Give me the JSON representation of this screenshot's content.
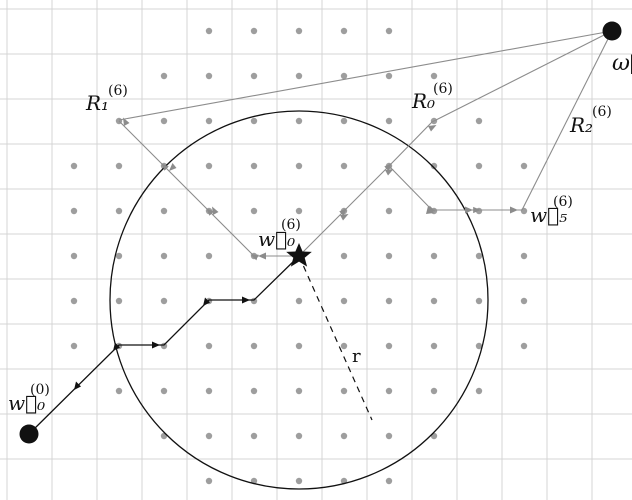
{
  "labels": {
    "w0_initial": "w⃗₀",
    "w0_initial_sup": "(0)",
    "w0_current": "w⃗₀",
    "w0_current_sup": "(6)",
    "w5": "w⃗₅",
    "w5_sup": "(6)",
    "R0": "R₀",
    "R0_sup": "(6)",
    "R1": "R₁",
    "R1_sup": "(6)",
    "R2": "R₂",
    "R2_sup": "(6)",
    "omega": "ω⃗",
    "radius": "r"
  },
  "colors": {
    "grid": "#d4d4d4",
    "dot": "#9e9e9e",
    "dark": "#111111",
    "gray_path": "#8c8c8c"
  }
}
